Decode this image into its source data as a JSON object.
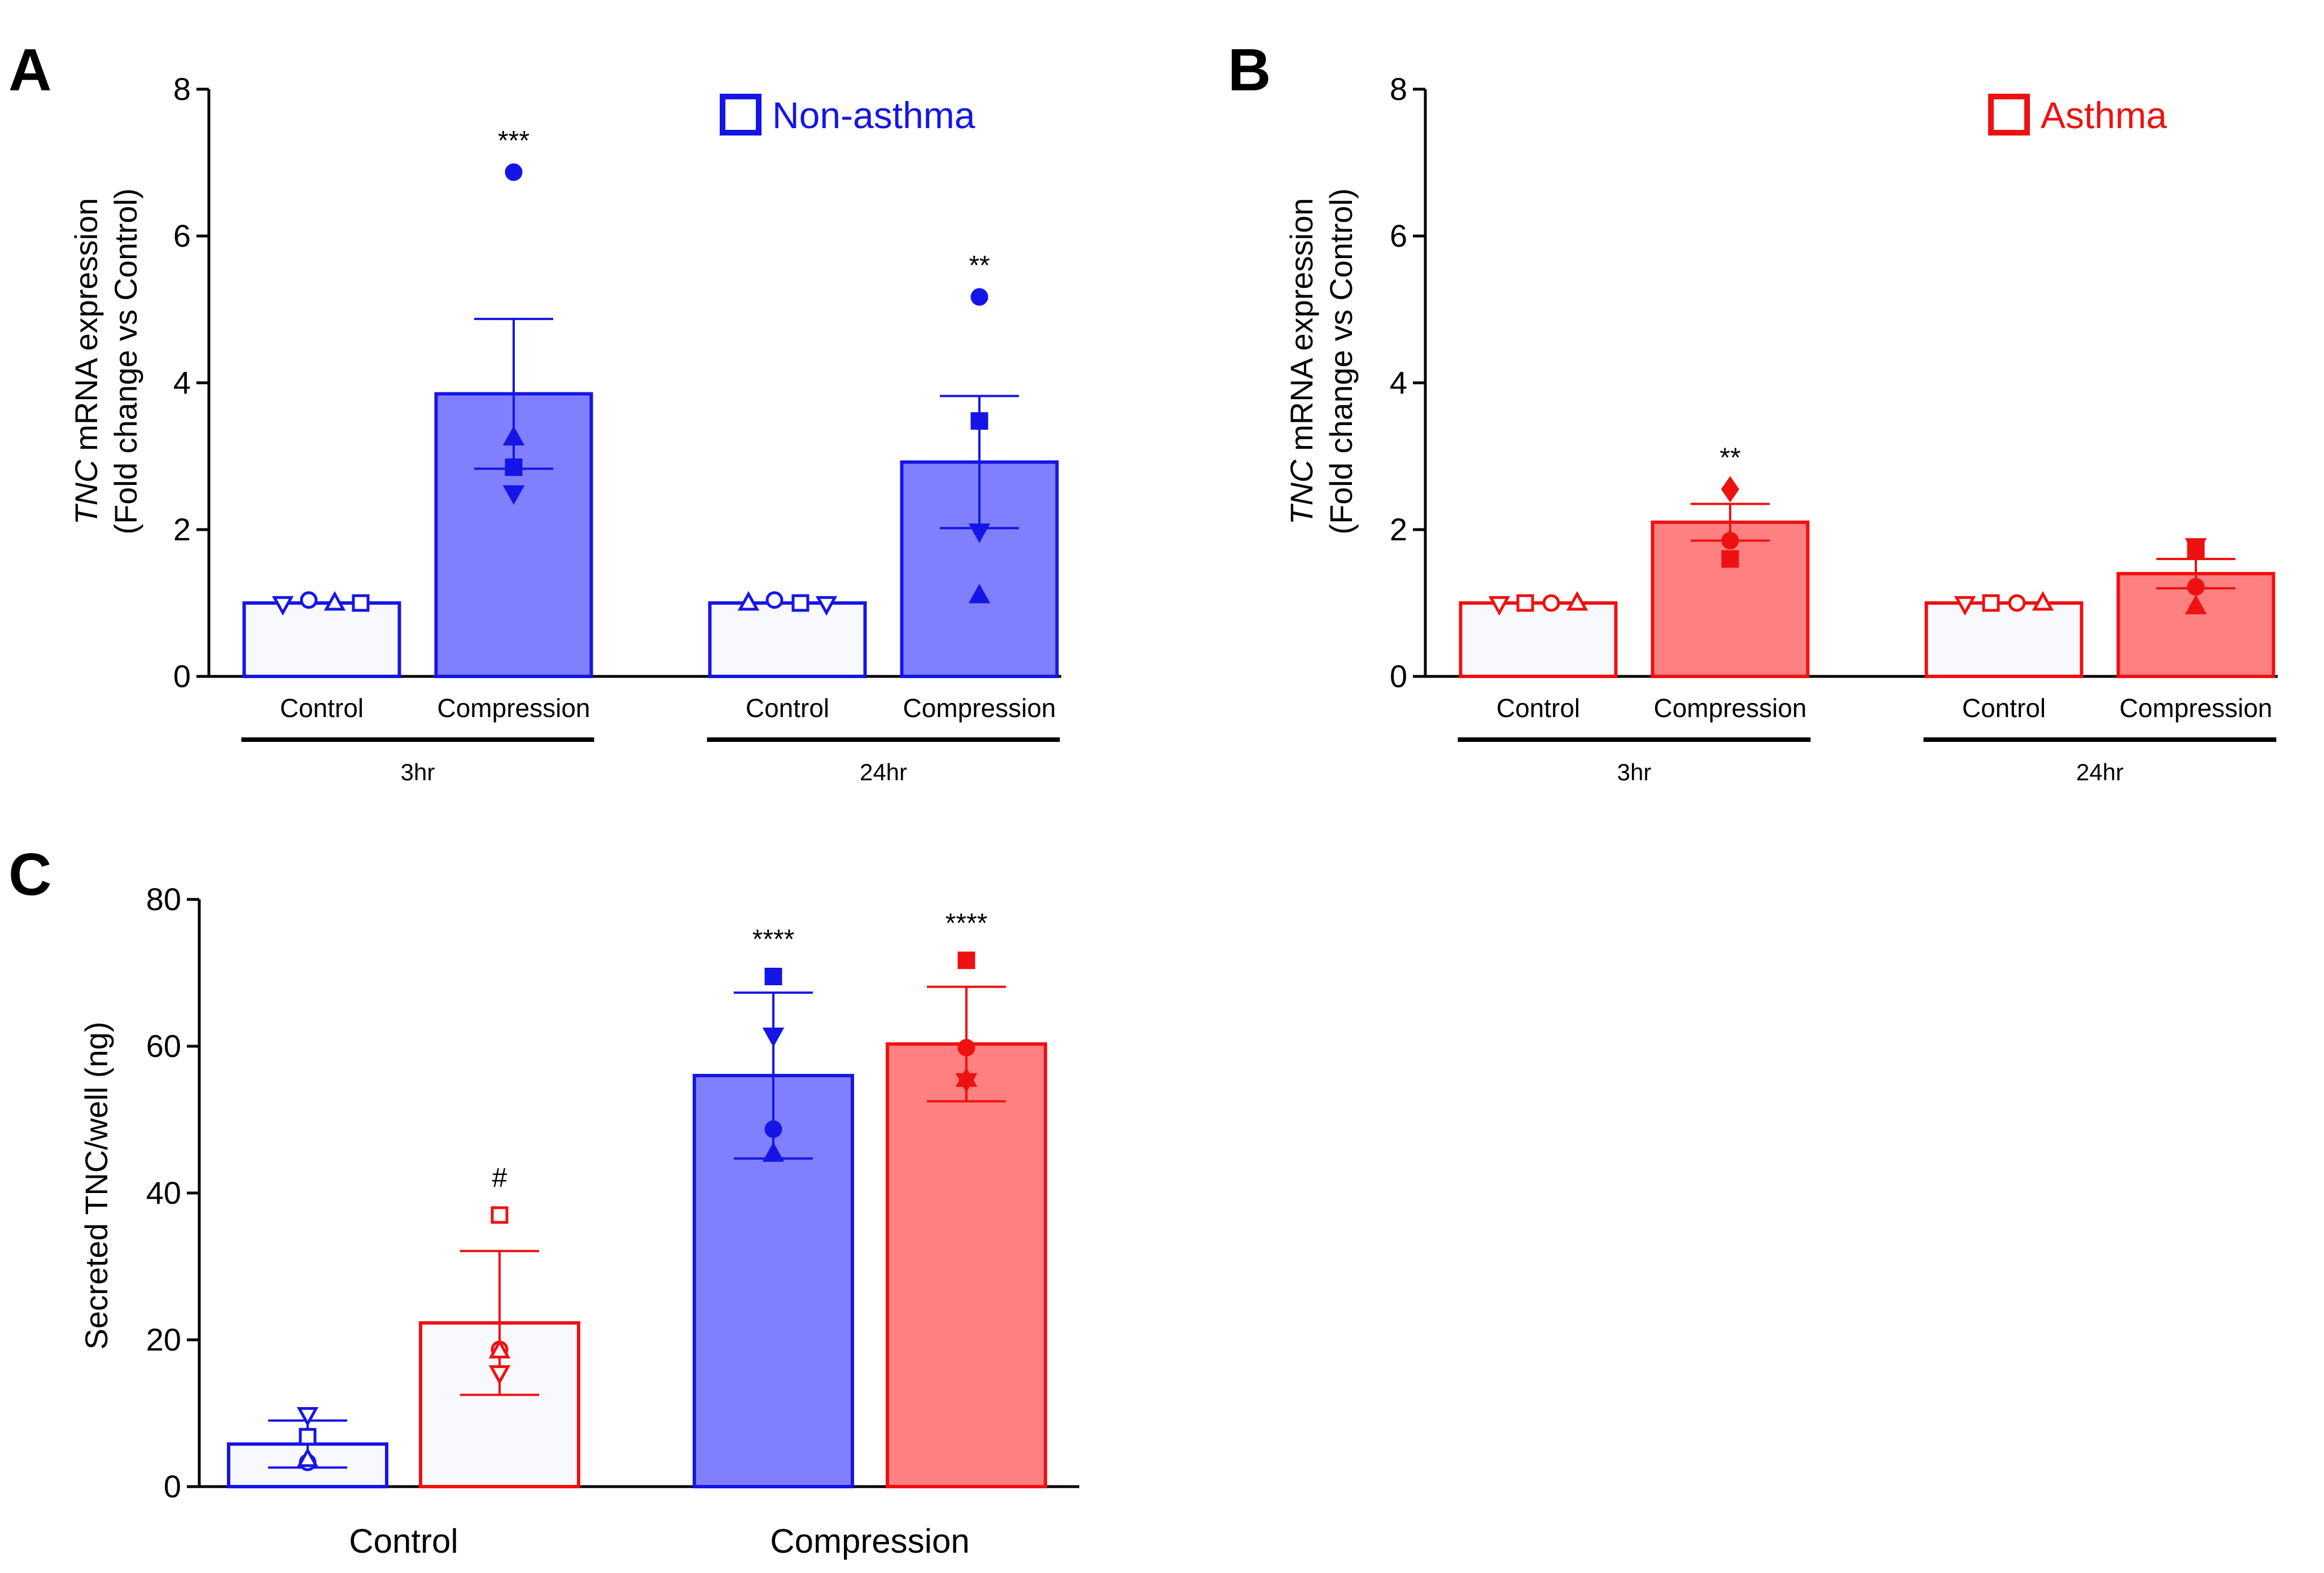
{
  "colors": {
    "nonasthma_stroke": "#1515e6",
    "nonasthma_fill": "#8080ff",
    "asthma_stroke": "#ee1111",
    "asthma_fill": "#ff8080",
    "control_fill": "#f8f8ff"
  },
  "chart_data": [
    {
      "panel": "A",
      "type": "bar",
      "ylabel_italic": "TNC",
      "ylabel_rest": " mRNA expression",
      "ylabel_line2": "(Fold change vs Control)",
      "ylim": [
        0,
        8
      ],
      "yticks": [
        "0",
        "2",
        "4",
        "6",
        "8"
      ],
      "legend": "Non-asthma",
      "legend_color": "#1515e6",
      "groups": [
        {
          "name": "3hr",
          "bars": [
            {
              "label": "Control",
              "value": 1.0,
              "err": 0,
              "filled": false,
              "points": [
                {
                  "s": "tri-down",
                  "y": 0.99
                },
                {
                  "s": "circle",
                  "y": 1.04
                },
                {
                  "s": "tri-up",
                  "y": 1.0
                },
                {
                  "s": "square",
                  "y": 1.0
                }
              ]
            },
            {
              "label": "Compression",
              "value": 3.85,
              "err": 1.02,
              "sig": "***",
              "filled": true,
              "points": [
                {
                  "s": "circle",
                  "y": 6.87
                },
                {
                  "s": "tri-up",
                  "y": 3.25
                },
                {
                  "s": "square",
                  "y": 2.85
                },
                {
                  "s": "tri-down",
                  "y": 2.5
                }
              ]
            }
          ]
        },
        {
          "name": "24hr",
          "bars": [
            {
              "label": "Control",
              "value": 1.0,
              "err": 0,
              "filled": false,
              "points": [
                {
                  "s": "tri-up",
                  "y": 1.0
                },
                {
                  "s": "circle",
                  "y": 1.04
                },
                {
                  "s": "square",
                  "y": 1.0
                },
                {
                  "s": "tri-down",
                  "y": 0.99
                }
              ]
            },
            {
              "label": "Compression",
              "value": 2.92,
              "err": 0.9,
              "sig": "**",
              "filled": true,
              "points": [
                {
                  "s": "circle",
                  "y": 5.17
                },
                {
                  "s": "square",
                  "y": 3.48
                },
                {
                  "s": "tri-down",
                  "y": 1.98
                },
                {
                  "s": "tri-up",
                  "y": 1.1
                }
              ]
            }
          ]
        }
      ]
    },
    {
      "panel": "B",
      "type": "bar",
      "ylabel_italic": "TNC",
      "ylabel_rest": " mRNA expression",
      "ylabel_line2": "(Fold change vs Control)",
      "ylim": [
        0,
        8
      ],
      "yticks": [
        "0",
        "2",
        "4",
        "6",
        "8"
      ],
      "legend": "Asthma",
      "legend_color": "#ee1111",
      "groups": [
        {
          "name": "3hr",
          "bars": [
            {
              "label": "Control",
              "value": 1.0,
              "err": 0,
              "filled": false,
              "points": [
                {
                  "s": "tri-down",
                  "y": 0.99
                },
                {
                  "s": "square",
                  "y": 1.0
                },
                {
                  "s": "circle",
                  "y": 1.0
                },
                {
                  "s": "tri-up",
                  "y": 1.0
                }
              ]
            },
            {
              "label": "Compression",
              "value": 2.1,
              "err": 0.25,
              "sig": "**",
              "filled": true,
              "points": [
                {
                  "s": "diamond",
                  "y": 2.55
                },
                {
                  "s": "circle",
                  "y": 1.85
                },
                {
                  "s": "square",
                  "y": 1.6
                }
              ]
            }
          ]
        },
        {
          "name": "24hr",
          "bars": [
            {
              "label": "Control",
              "value": 1.0,
              "err": 0,
              "filled": false,
              "points": [
                {
                  "s": "tri-down",
                  "y": 0.99
                },
                {
                  "s": "square",
                  "y": 1.0
                },
                {
                  "s": "circle",
                  "y": 1.0
                },
                {
                  "s": "tri-up",
                  "y": 1.0
                }
              ]
            },
            {
              "label": "Compression",
              "value": 1.4,
              "err": 0.2,
              "filled": true,
              "points": [
                {
                  "s": "square",
                  "y": 1.72
                },
                {
                  "s": "tri-down",
                  "y": 1.78
                },
                {
                  "s": "circle",
                  "y": 1.22
                },
                {
                  "s": "tri-up",
                  "y": 0.95
                }
              ]
            }
          ]
        }
      ]
    },
    {
      "panel": "C",
      "type": "bar",
      "ylabel": "Secreted TNC/well (ng)",
      "ylim": [
        0,
        80
      ],
      "yticks": [
        "0",
        "20",
        "40",
        "60",
        "80"
      ],
      "groups": [
        {
          "name": "Control",
          "bars": [
            {
              "series": "Non-asthma",
              "value": 5.8,
              "err": 3.2,
              "filled": false,
              "points": [
                {
                  "s": "tri-down",
                  "y": 9.8
                },
                {
                  "s": "square",
                  "y": 6.8
                },
                {
                  "s": "circle",
                  "y": 3.3
                },
                {
                  "s": "tri-up",
                  "y": 3.7
                }
              ]
            },
            {
              "series": "Asthma",
              "value": 22.3,
              "err": 9.8,
              "sig": "#",
              "filled": false,
              "points": [
                {
                  "s": "square",
                  "y": 37.0
                },
                {
                  "s": "circle",
                  "y": 18.7
                },
                {
                  "s": "tri-up",
                  "y": 18.5
                },
                {
                  "s": "tri-down",
                  "y": 15.5
                }
              ]
            }
          ]
        },
        {
          "name": "Compression",
          "bars": [
            {
              "series": "Non-asthma",
              "value": 56.0,
              "err": 11.3,
              "sig": "****",
              "filled": true,
              "points": [
                {
                  "s": "square",
                  "y": 69.5
                },
                {
                  "s": "tri-down",
                  "y": 61.5
                },
                {
                  "s": "circle",
                  "y": 48.7
                },
                {
                  "s": "tri-up",
                  "y": 45.3
                }
              ]
            },
            {
              "series": "Asthma",
              "value": 60.3,
              "err": 7.8,
              "sig": "****",
              "filled": true,
              "points": [
                {
                  "s": "square",
                  "y": 71.7
                },
                {
                  "s": "circle",
                  "y": 59.8
                },
                {
                  "s": "tri-down",
                  "y": 55.3
                },
                {
                  "s": "tri-up",
                  "y": 55.5
                }
              ]
            }
          ]
        }
      ]
    }
  ]
}
